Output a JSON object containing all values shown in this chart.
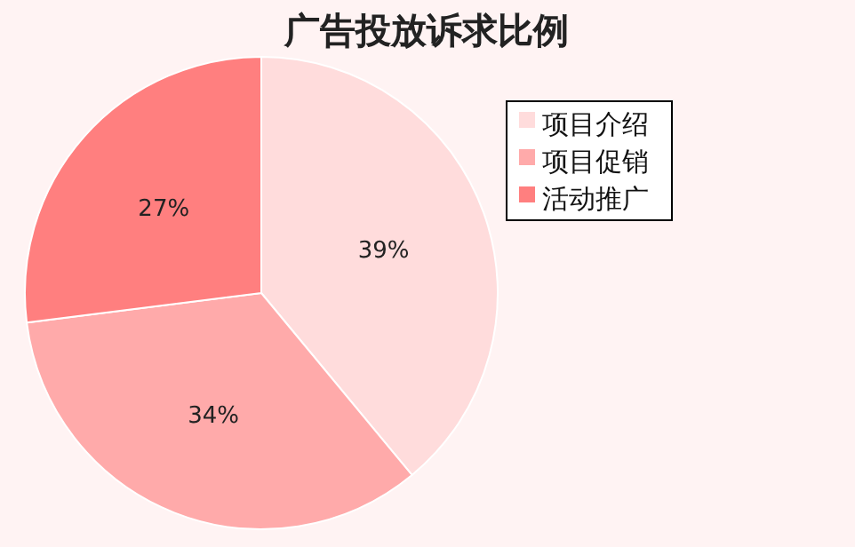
{
  "chart_data": {
    "type": "pie",
    "title": "广告投放诉求比例",
    "categories": [
      "项目介绍",
      "项目促销",
      "活动推广"
    ],
    "values": [
      39,
      34,
      27
    ],
    "colors": [
      "#ffdcdc",
      "#ffaaaa",
      "#ff7f7f"
    ],
    "value_labels": [
      "39%",
      "34%",
      "27%"
    ],
    "legend": "right"
  }
}
